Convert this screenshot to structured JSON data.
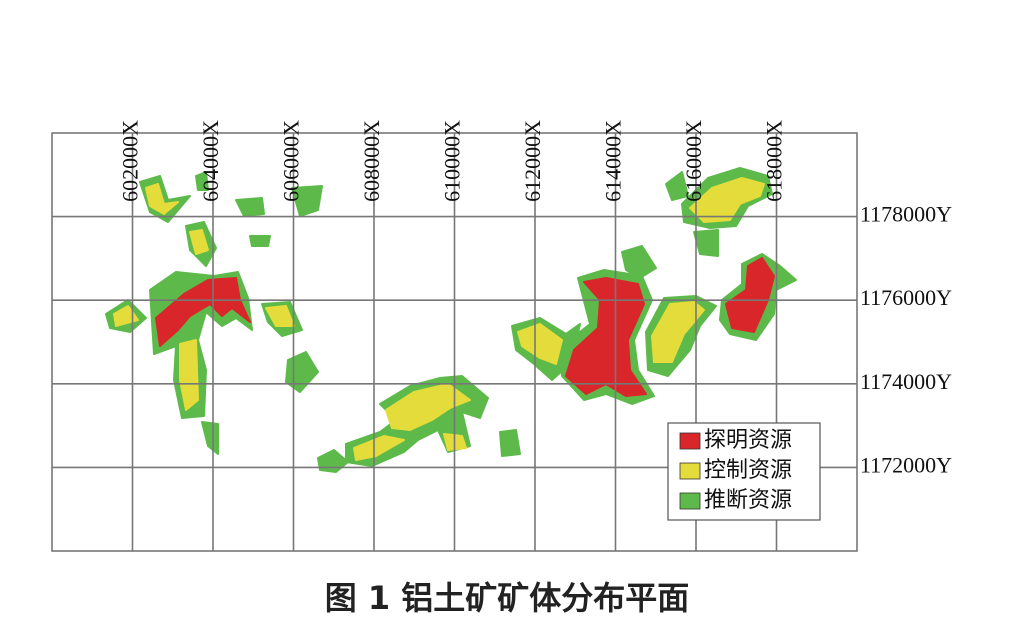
{
  "x_labels": [
    "602000X",
    "604000X",
    "606000X",
    "608000X",
    "610000X",
    "612000X",
    "614000X",
    "616000X",
    "618000X"
  ],
  "y_labels": [
    "1178000Y",
    "1176000Y",
    "1174000Y",
    "1172000Y"
  ],
  "legend": [
    {
      "label": "探明资源",
      "color": "#d9262b"
    },
    {
      "label": "控制资源",
      "color": "#e3dc3a"
    },
    {
      "label": "推断资源",
      "color": "#5dba4a"
    }
  ],
  "caption": "图 1 铝土矿矿体分布平面"
}
